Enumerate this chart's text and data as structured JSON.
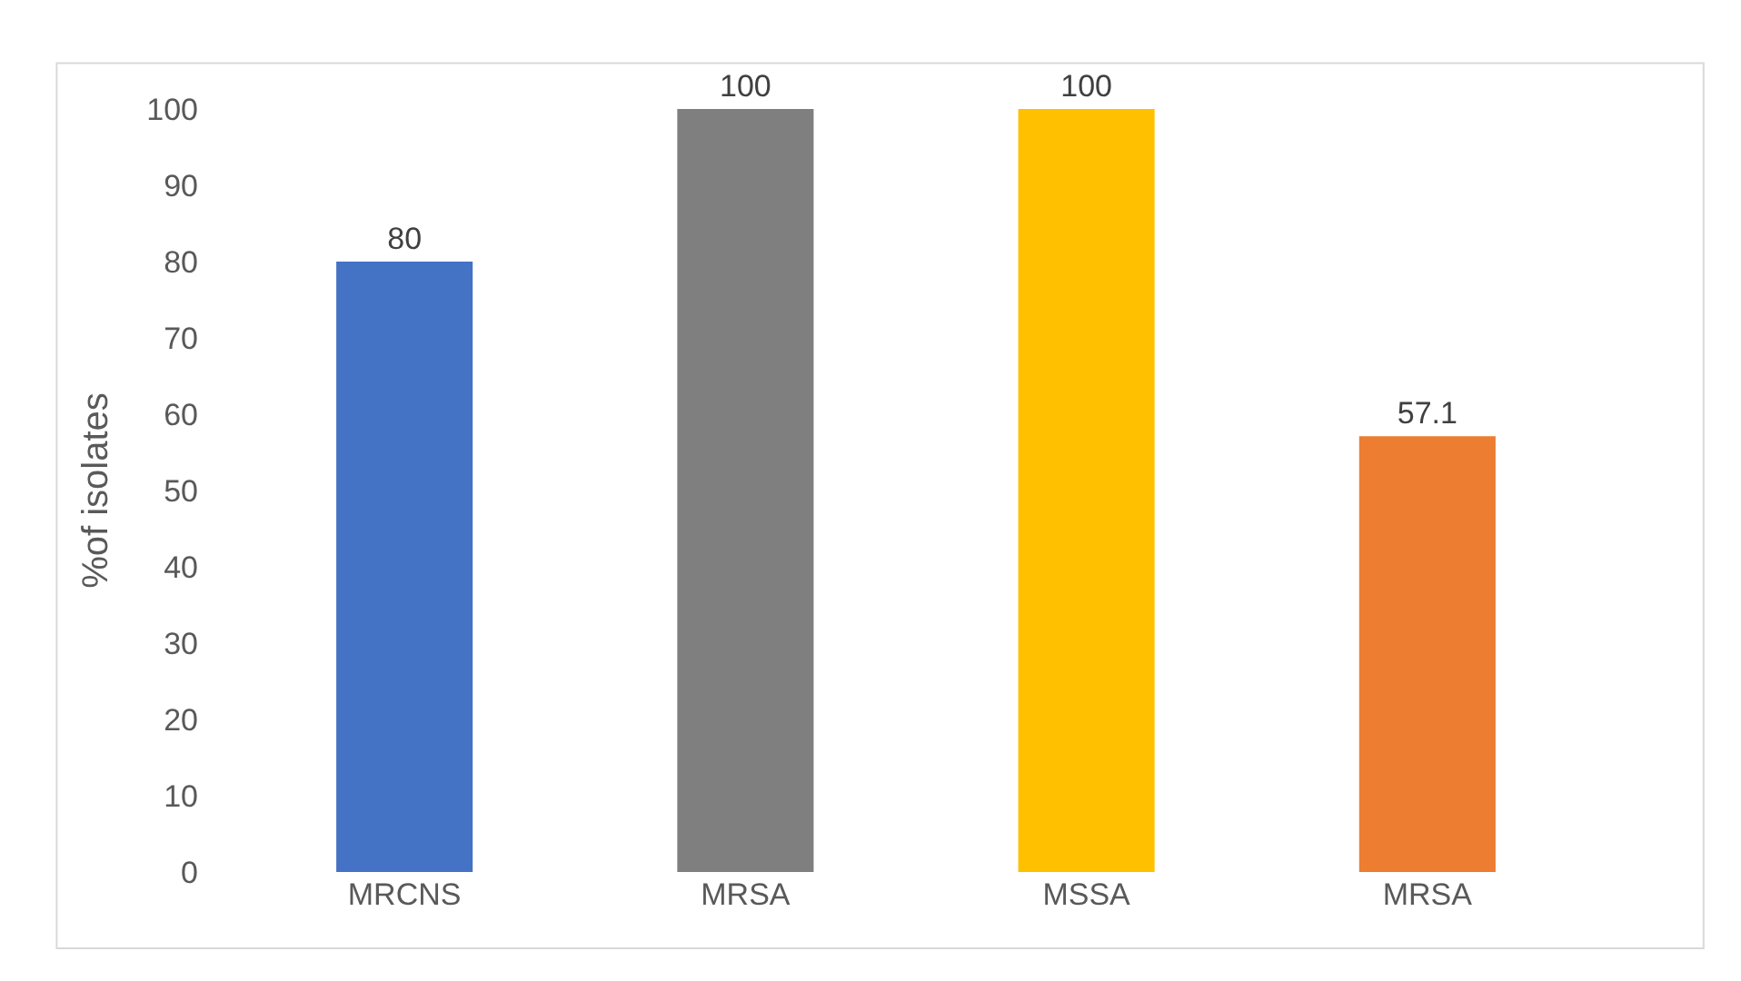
{
  "chart_data": {
    "type": "bar",
    "ylabel": "%of isolates",
    "categories": [
      "MRCNS",
      "MRSA",
      "MSSA",
      "MRSA"
    ],
    "values": [
      80,
      100,
      100,
      57.1
    ],
    "colors": [
      "#4472c4",
      "#7f7f7f",
      "#ffc000",
      "#ed7d31"
    ],
    "ylim": [
      0,
      100
    ],
    "yticks": [
      0,
      10,
      20,
      30,
      40,
      50,
      60,
      70,
      80,
      90,
      100
    ],
    "data_labels": true
  }
}
